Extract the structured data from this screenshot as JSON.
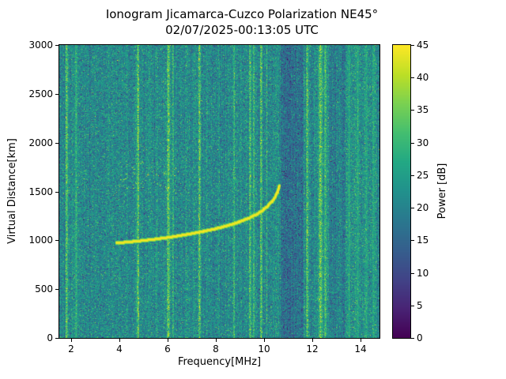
{
  "chart_data": {
    "type": "heatmap",
    "title": "Ionogram Jicamarca-Cuzco Polarization NE45°",
    "subtitle": "02/07/2025-00:13:05 UTC",
    "xlabel": "Frequency[MHz]",
    "ylabel": "Virtual Distance[km]",
    "xlim": [
      1.5,
      14.8
    ],
    "ylim": [
      0,
      3000
    ],
    "x_ticks": [
      2,
      4,
      6,
      8,
      10,
      12,
      14
    ],
    "y_ticks": [
      0,
      500,
      1000,
      1500,
      2000,
      2500,
      3000
    ],
    "grid": false,
    "colorbar": {
      "label": "Power [dB]",
      "range": [
        0,
        45
      ],
      "ticks": [
        0,
        5,
        10,
        15,
        20,
        25,
        30,
        35,
        40,
        45
      ],
      "colormap": "viridis"
    },
    "background_noise": {
      "mean_db": 21.5,
      "std_db": 5
    },
    "trace": {
      "name": "ionogram-echo-trace",
      "power_db": 45,
      "points": [
        [
          3.85,
          975
        ],
        [
          4.2,
          983
        ],
        [
          4.6,
          992
        ],
        [
          5.0,
          1002
        ],
        [
          5.4,
          1013
        ],
        [
          5.8,
          1026
        ],
        [
          6.2,
          1040
        ],
        [
          6.6,
          1056
        ],
        [
          7.0,
          1073
        ],
        [
          7.4,
          1092
        ],
        [
          7.8,
          1112
        ],
        [
          8.2,
          1136
        ],
        [
          8.6,
          1163
        ],
        [
          9.0,
          1196
        ],
        [
          9.4,
          1236
        ],
        [
          9.7,
          1272
        ],
        [
          9.9,
          1305
        ],
        [
          10.1,
          1345
        ],
        [
          10.3,
          1395
        ],
        [
          10.45,
          1445
        ],
        [
          10.55,
          1500
        ],
        [
          10.62,
          1560
        ]
      ]
    },
    "rfi_lines": [
      {
        "f": 1.8,
        "w": 0.05,
        "boost_db": 20
      },
      {
        "f": 2.2,
        "w": 0.04,
        "boost_db": 12
      },
      {
        "f": 4.78,
        "w": 0.05,
        "boost_db": 22
      },
      {
        "f": 6.03,
        "w": 0.06,
        "boost_db": 22
      },
      {
        "f": 6.22,
        "w": 0.04,
        "boost_db": 14
      },
      {
        "f": 7.32,
        "w": 0.05,
        "boost_db": 22
      },
      {
        "f": 8.76,
        "w": 0.04,
        "boost_db": 15
      },
      {
        "f": 9.42,
        "w": 0.05,
        "boost_db": 18
      },
      {
        "f": 9.58,
        "w": 0.04,
        "boost_db": 16
      },
      {
        "f": 9.88,
        "w": 0.05,
        "boost_db": 20
      },
      {
        "f": 10.12,
        "w": 0.03,
        "boost_db": 13
      },
      {
        "f": 11.8,
        "w": 0.05,
        "boost_db": 20
      },
      {
        "f": 12.35,
        "w": 0.07,
        "boost_db": 22
      },
      {
        "f": 12.55,
        "w": 0.05,
        "boost_db": 16
      },
      {
        "f": 13.55,
        "w": 0.05,
        "boost_db": 9
      },
      {
        "f": 13.9,
        "w": 0.05,
        "boost_db": 9
      },
      {
        "f": 14.25,
        "w": 0.05,
        "boost_db": 9
      },
      {
        "f": 14.55,
        "w": 0.04,
        "boost_db": 8
      }
    ],
    "dark_bands": [
      {
        "range": [
          10.7,
          11.65
        ],
        "delta_db": -5
      },
      {
        "range": [
          12.7,
          13.35
        ],
        "delta_db": -2
      },
      {
        "range": [
          1.5,
          1.72
        ],
        "delta_db": -2
      }
    ],
    "bright_bands": [
      {
        "range": [
          13.4,
          14.7
        ],
        "delta_db": 1.5
      }
    ],
    "speckles": {
      "f_range": [
        4.0,
        6.6
      ],
      "h_range": [
        1520,
        1830
      ],
      "count": 80,
      "power_db": 40
    }
  }
}
